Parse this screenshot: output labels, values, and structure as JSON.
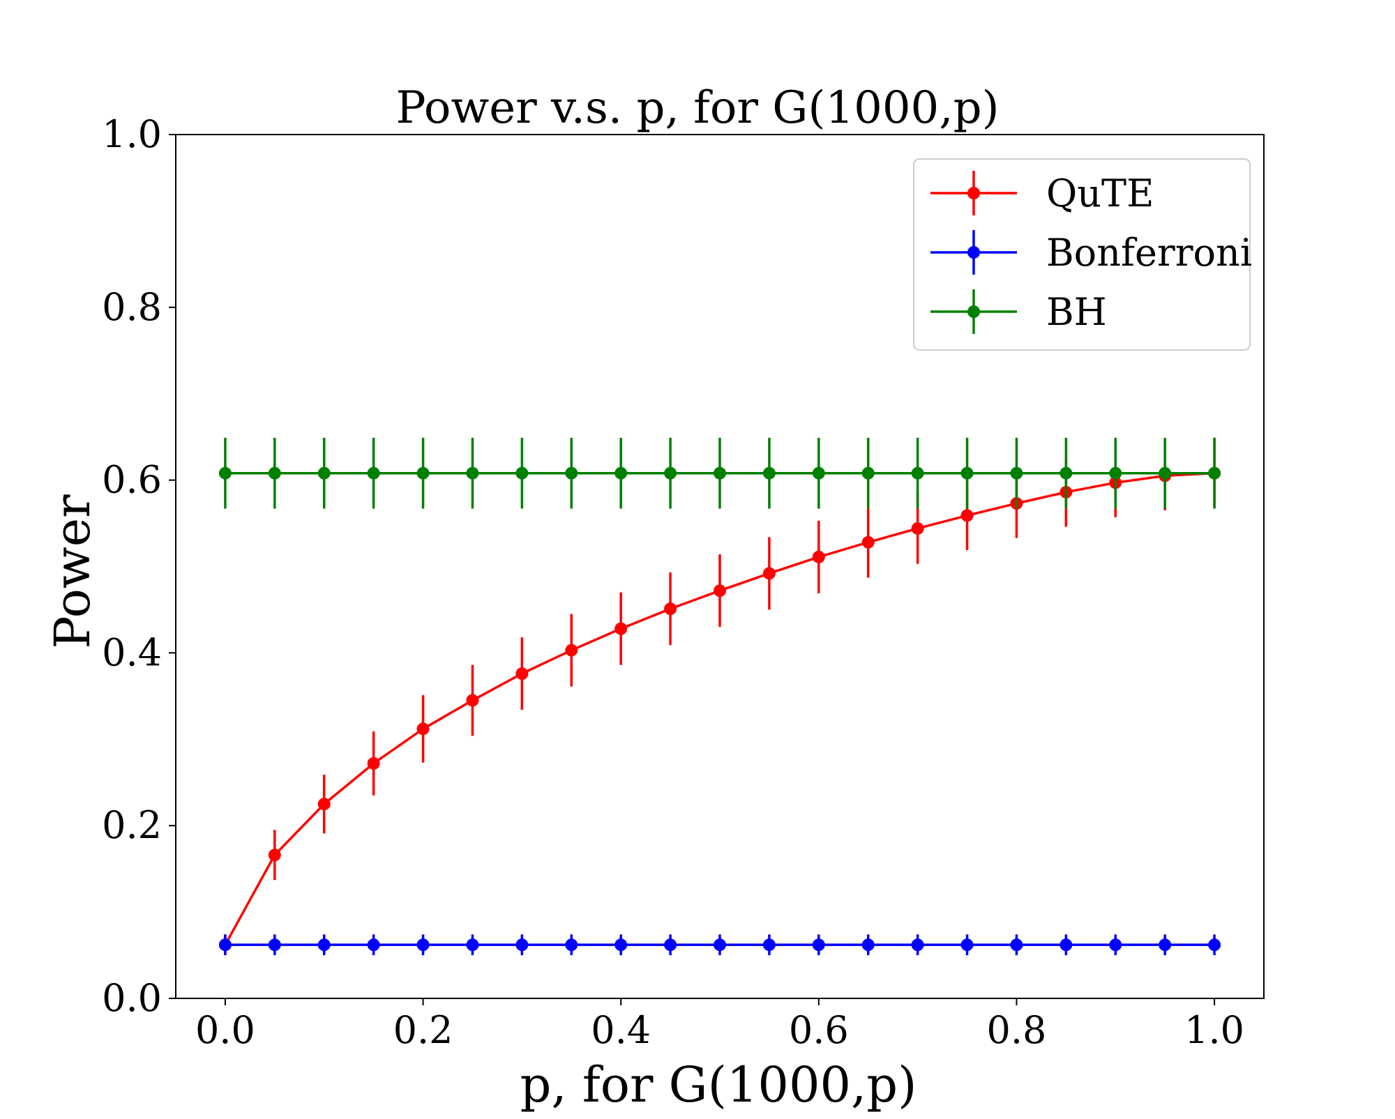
{
  "chart_data": {
    "type": "line",
    "title": "Power v.s. p, for G(1000,p)",
    "xlabel": "p, for G(1000,p)",
    "ylabel": "Power",
    "xlim": [
      -0.05,
      1.05
    ],
    "ylim": [
      0.0,
      1.0
    ],
    "xticks": [
      "0.0",
      "0.2",
      "0.4",
      "0.6",
      "0.8",
      "1.0"
    ],
    "yticks": [
      "0.0",
      "0.2",
      "0.4",
      "0.6",
      "0.8",
      "1.0"
    ],
    "x": [
      0.0,
      0.05,
      0.1,
      0.15,
      0.2,
      0.25,
      0.3,
      0.35,
      0.4,
      0.45,
      0.5,
      0.55,
      0.6,
      0.65,
      0.7,
      0.75,
      0.8,
      0.85,
      0.9,
      0.95,
      1.0
    ],
    "legend_position": "top-right",
    "grid": false,
    "series": [
      {
        "name": "QuTE",
        "color": "#ff0000",
        "values": [
          0.062,
          0.166,
          0.225,
          0.272,
          0.312,
          0.345,
          0.376,
          0.403,
          0.428,
          0.451,
          0.472,
          0.492,
          0.511,
          0.528,
          0.544,
          0.559,
          0.573,
          0.586,
          0.597,
          0.605,
          0.608
        ],
        "errors": [
          0.012,
          0.029,
          0.034,
          0.037,
          0.039,
          0.041,
          0.042,
          0.042,
          0.042,
          0.042,
          0.042,
          0.042,
          0.042,
          0.041,
          0.041,
          0.04,
          0.04,
          0.04,
          0.04,
          0.04,
          0.041
        ]
      },
      {
        "name": "Bonferroni",
        "color": "#0000ff",
        "values": [
          0.062,
          0.062,
          0.062,
          0.062,
          0.062,
          0.062,
          0.062,
          0.062,
          0.062,
          0.062,
          0.062,
          0.062,
          0.062,
          0.062,
          0.062,
          0.062,
          0.062,
          0.062,
          0.062,
          0.062,
          0.062
        ],
        "errors": [
          0.012,
          0.012,
          0.012,
          0.012,
          0.012,
          0.012,
          0.012,
          0.012,
          0.012,
          0.012,
          0.012,
          0.012,
          0.012,
          0.012,
          0.012,
          0.012,
          0.012,
          0.012,
          0.012,
          0.012,
          0.012
        ]
      },
      {
        "name": "BH",
        "color": "#008000",
        "values": [
          0.608,
          0.608,
          0.608,
          0.608,
          0.608,
          0.608,
          0.608,
          0.608,
          0.608,
          0.608,
          0.608,
          0.608,
          0.608,
          0.608,
          0.608,
          0.608,
          0.608,
          0.608,
          0.608,
          0.608,
          0.608
        ],
        "errors": [
          0.041,
          0.041,
          0.041,
          0.041,
          0.041,
          0.041,
          0.041,
          0.041,
          0.041,
          0.041,
          0.041,
          0.041,
          0.041,
          0.041,
          0.041,
          0.041,
          0.041,
          0.041,
          0.041,
          0.041,
          0.041
        ]
      }
    ]
  }
}
